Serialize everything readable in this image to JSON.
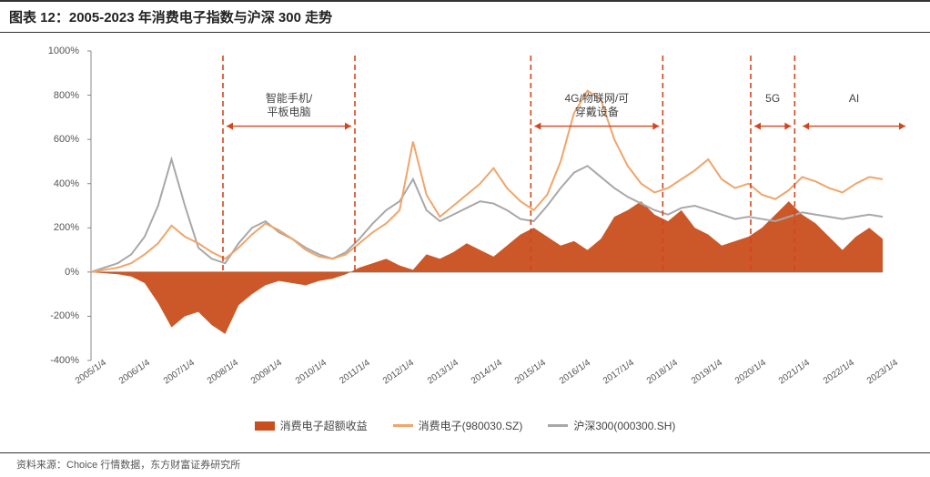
{
  "title": "图表 12：2005-2023 年消费电子指数与沪深 300 走势",
  "footer": "资料来源：Choice 行情数据，东方财富证券研究所",
  "chart": {
    "type": "line+area",
    "background_color": "#ffffff",
    "ylim": [
      -400,
      1000
    ],
    "ytick_step": 200,
    "yticks": [
      "-400%",
      "-200%",
      "0%",
      "200%",
      "400%",
      "600%",
      "800%",
      "1000%"
    ],
    "xlabels": [
      "2005/1/4",
      "2006/1/4",
      "2007/1/4",
      "2008/1/4",
      "2009/1/4",
      "2010/1/4",
      "2011/1/4",
      "2012/1/4",
      "2013/1/4",
      "2014/1/4",
      "2015/1/4",
      "2016/1/4",
      "2017/1/4",
      "2018/1/4",
      "2019/1/4",
      "2020/1/4",
      "2021/1/4",
      "2022/1/4",
      "2023/1/4"
    ],
    "x_count": 19,
    "colors": {
      "area": "#c94f1e",
      "line1": "#f0a56a",
      "line2": "#a8a8a8",
      "vline": "#d2451e",
      "axis": "#888888"
    },
    "line_width": 2,
    "annotations": [
      {
        "text": "智能手机/\n平板电脑",
        "x_from": 3,
        "x_to": 6,
        "y": 800
      },
      {
        "text": "4G/物联网/可\n穿戴设备",
        "x_from": 10,
        "x_to": 13,
        "y": 800
      },
      {
        "text": "5G",
        "x_from": 15,
        "x_to": 16,
        "y": 800
      },
      {
        "text": "AI",
        "x_from": 16.1,
        "x_to": 18.6,
        "y": 800
      }
    ],
    "vlines": [
      3,
      6,
      10,
      13,
      15,
      16
    ],
    "legend": [
      {
        "label": "消费电子超额收益",
        "type": "box",
        "color": "#c94f1e"
      },
      {
        "label": "消费电子(980030.SZ)",
        "type": "line",
        "color": "#f0a56a"
      },
      {
        "label": "沪深300(000300.SH)",
        "type": "line",
        "color": "#a8a8a8"
      }
    ],
    "series_area": [
      0,
      -5,
      -10,
      -20,
      -50,
      -140,
      -250,
      -200,
      -180,
      -240,
      -280,
      -150,
      -100,
      -60,
      -40,
      -50,
      -60,
      -40,
      -30,
      -10,
      20,
      40,
      60,
      30,
      10,
      80,
      60,
      90,
      130,
      100,
      70,
      120,
      170,
      200,
      160,
      120,
      140,
      100,
      150,
      250,
      280,
      320,
      260,
      230,
      280,
      200,
      170,
      120,
      140,
      160,
      200,
      260,
      320,
      260,
      220,
      160,
      100,
      160,
      200,
      150
    ],
    "series_line1": [
      0,
      10,
      20,
      40,
      80,
      130,
      210,
      160,
      130,
      90,
      60,
      110,
      170,
      220,
      190,
      150,
      100,
      70,
      60,
      80,
      130,
      180,
      220,
      280,
      590,
      350,
      250,
      300,
      350,
      400,
      470,
      380,
      320,
      280,
      350,
      500,
      720,
      820,
      780,
      600,
      480,
      400,
      360,
      380,
      420,
      460,
      510,
      420,
      380,
      400,
      350,
      330,
      370,
      430,
      410,
      380,
      360,
      400,
      430,
      420
    ],
    "series_line2": [
      0,
      20,
      40,
      80,
      160,
      300,
      510,
      300,
      110,
      60,
      40,
      130,
      200,
      230,
      180,
      150,
      110,
      80,
      60,
      90,
      150,
      220,
      280,
      320,
      420,
      280,
      230,
      260,
      290,
      320,
      310,
      280,
      240,
      230,
      300,
      380,
      450,
      480,
      430,
      380,
      340,
      310,
      280,
      260,
      290,
      300,
      280,
      260,
      240,
      250,
      240,
      230,
      250,
      270,
      260,
      250,
      240,
      250,
      260,
      250
    ]
  }
}
